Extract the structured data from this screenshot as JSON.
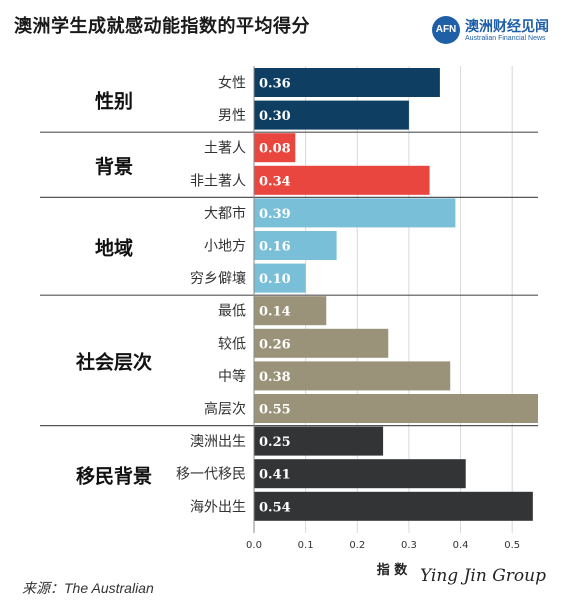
{
  "page": {
    "title": "澳洲学生成就感动能指数的平均得分",
    "source": "来源：The Australian",
    "signature": "Ying Jin Group"
  },
  "logo": {
    "badge": "AFN",
    "name": "澳洲财经见闻",
    "subtitle": "Australian Financial News"
  },
  "chart_data": {
    "type": "bar",
    "orientation": "horizontal",
    "title": "澳洲学生成就感动能指数的平均得分",
    "xlabel": "指 数",
    "xlim": [
      0,
      0.55
    ],
    "xticks": [
      "0.0",
      "0.1",
      "0.2",
      "0.3",
      "0.4",
      "0.5"
    ],
    "xtick_values": [
      0,
      0.1,
      0.2,
      0.3,
      0.4,
      0.5
    ],
    "grid": "vertical",
    "groups": [
      {
        "name": "性别",
        "color": "#0e3f63",
        "categories": [
          "女性",
          "男性"
        ],
        "values": [
          0.36,
          0.3
        ],
        "labels": [
          "0.36",
          "0.30"
        ]
      },
      {
        "name": "背景",
        "color": "#e8463f",
        "categories": [
          "土著人",
          "非土著人"
        ],
        "values": [
          0.08,
          0.34
        ],
        "labels": [
          "0.08",
          "0.34"
        ]
      },
      {
        "name": "地域",
        "color": "#79bfd8",
        "categories": [
          "大都市",
          "小地方",
          "穷乡僻壤"
        ],
        "values": [
          0.39,
          0.16,
          0.1
        ],
        "labels": [
          "0.39",
          "0.16",
          "0.10"
        ]
      },
      {
        "name": "社会层次",
        "color": "#9a9379",
        "categories": [
          "最低",
          "较低",
          "中等",
          "高层次"
        ],
        "values": [
          0.14,
          0.26,
          0.38,
          0.55
        ],
        "labels": [
          "0.14",
          "0.26",
          "0.38",
          "0.55"
        ]
      },
      {
        "name": "移民背景",
        "color": "#333436",
        "categories": [
          "澳洲出生",
          "移一代移民",
          "海外出生"
        ],
        "values": [
          0.25,
          0.41,
          0.54
        ],
        "labels": [
          "0.25",
          "0.41",
          "0.54"
        ]
      }
    ]
  }
}
